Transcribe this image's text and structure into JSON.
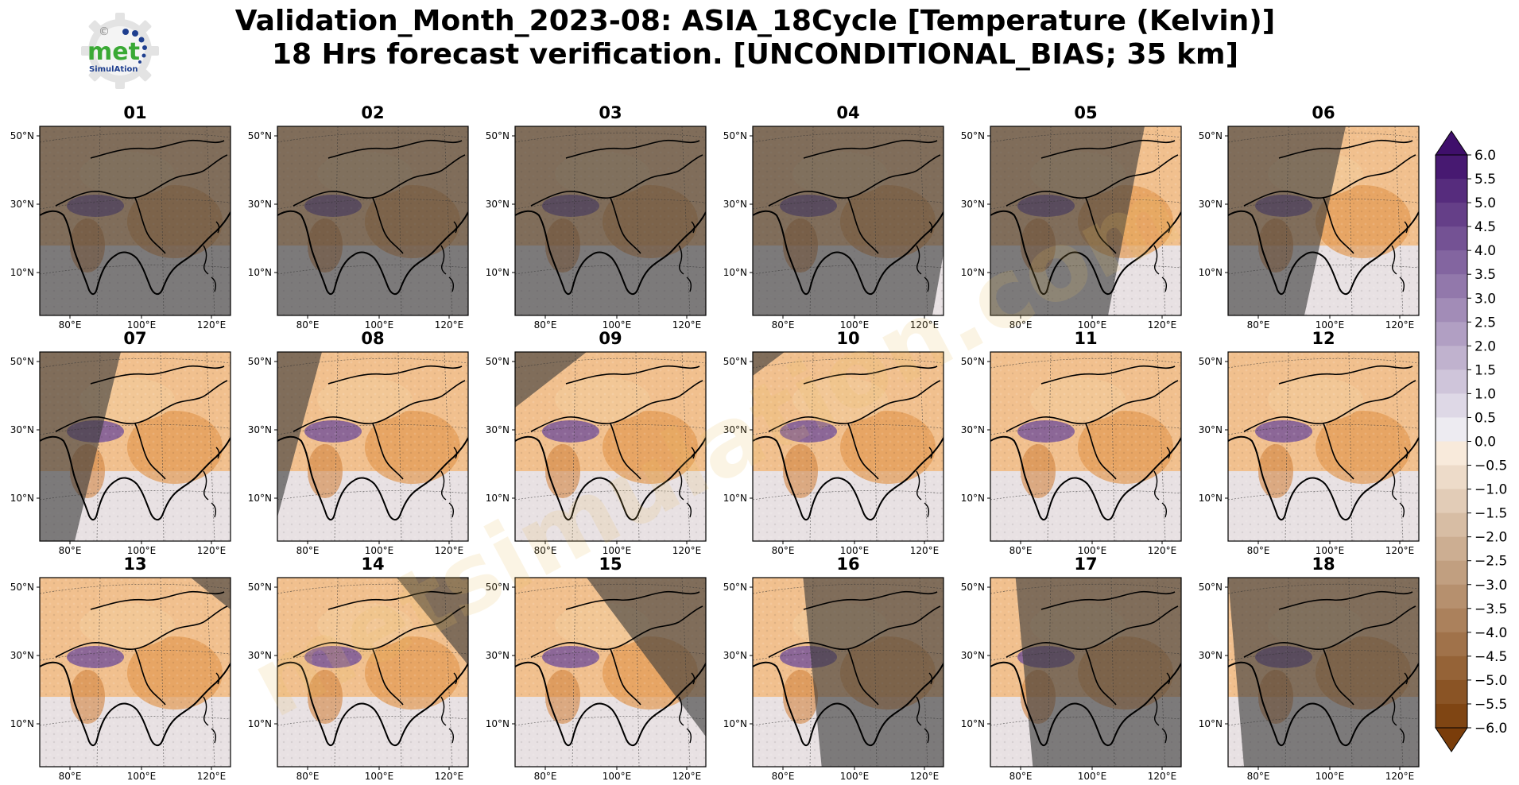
{
  "logo": {
    "word": "met",
    "subword": "SimulAtion",
    "symbol": "©",
    "colors": {
      "gear": "#d9d9d9",
      "word": "#3aa935",
      "dots": "#1f3f8f"
    }
  },
  "title": {
    "line1": "Validation_Month_2023-08: ASIA_18Cycle [Temperature (Kelvin)]",
    "line2": "18 Hrs forecast verification. [UNCONDITIONAL_BIAS; 35 km]"
  },
  "watermark": "metsimulation.com",
  "chart_data": {
    "type": "heatmap",
    "panels": [
      "01",
      "02",
      "03",
      "04",
      "05",
      "06",
      "07",
      "08",
      "09",
      "10",
      "11",
      "12",
      "13",
      "14",
      "15",
      "16",
      "17",
      "18"
    ],
    "grid": {
      "rows": 3,
      "cols": 6
    },
    "x_ticks": [
      "80°E",
      "100°E",
      "120°E"
    ],
    "y_ticks": [
      "50°N",
      "30°N",
      "10°N"
    ],
    "colorbar": {
      "ticks": [
        "6.0",
        "5.5",
        "5.0",
        "4.5",
        "4.0",
        "3.5",
        "3.0",
        "2.5",
        "2.0",
        "1.5",
        "1.0",
        "0.5",
        "0.0",
        "−0.5",
        "−1.0",
        "−1.5",
        "−2.0",
        "−2.5",
        "−3.0",
        "−3.5",
        "−4.0",
        "−4.5",
        "−5.0",
        "−5.5",
        "−6.0"
      ],
      "vmin": -6.0,
      "vmax": 6.0,
      "extend": "both",
      "positive_color": "#3f0f6b",
      "negative_color": "#7a3d0a"
    }
  }
}
